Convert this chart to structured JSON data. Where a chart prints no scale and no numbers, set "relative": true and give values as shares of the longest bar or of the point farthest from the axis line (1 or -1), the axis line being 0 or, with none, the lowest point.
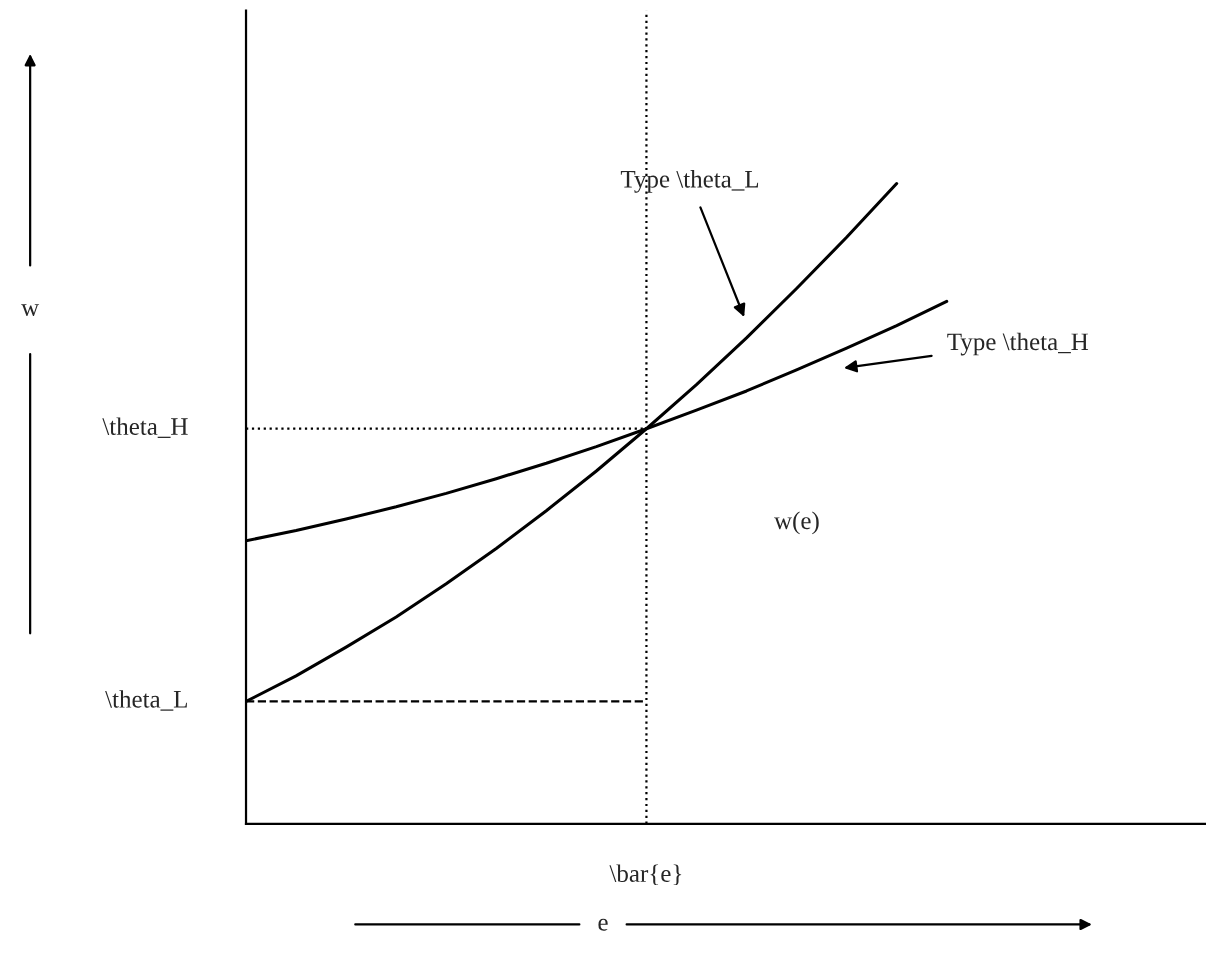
{
  "chart_data": {
    "type": "line",
    "relative": true,
    "xlabel": "e",
    "categories": [
      null,
      null,
      null,
      null,
      null,
      null,
      null,
      null,
      null,
      null,
      null,
      null,
      null,
      null,
      null
    ],
    "series": [
      {
        "color": "#000000",
        "values": [
          0.191,
          0.231,
          0.276,
          0.323,
          0.375,
          0.43,
          0.489,
          0.551,
          0.617,
          0.686,
          0.759,
          0.836,
          0.916,
          1.0,
          null
        ]
      },
      {
        "color": "#000000",
        "values": [
          0.442,
          0.458,
          0.476,
          0.495,
          0.516,
          0.539,
          0.563,
          0.589,
          0.617,
          0.646,
          0.676,
          0.709,
          0.743,
          0.778,
          0.816
        ]
      }
    ],
    "ref_lines": [
      {
        "axis": "y",
        "value": 0.617,
        "label": "\\theta_H",
        "line_style": "dotted",
        "color": "#000000"
      },
      {
        "axis": "y",
        "value": 0.191,
        "label": "\\theta_L",
        "line_style": "dashed",
        "color": "#000000"
      }
    ],
    "annotations": [
      "Type \\theta_L",
      "Type \\theta_H",
      "w(e)",
      "\\bar{e}",
      "w"
    ],
    "legend": false,
    "marker": "none",
    "line_style": "solid"
  }
}
